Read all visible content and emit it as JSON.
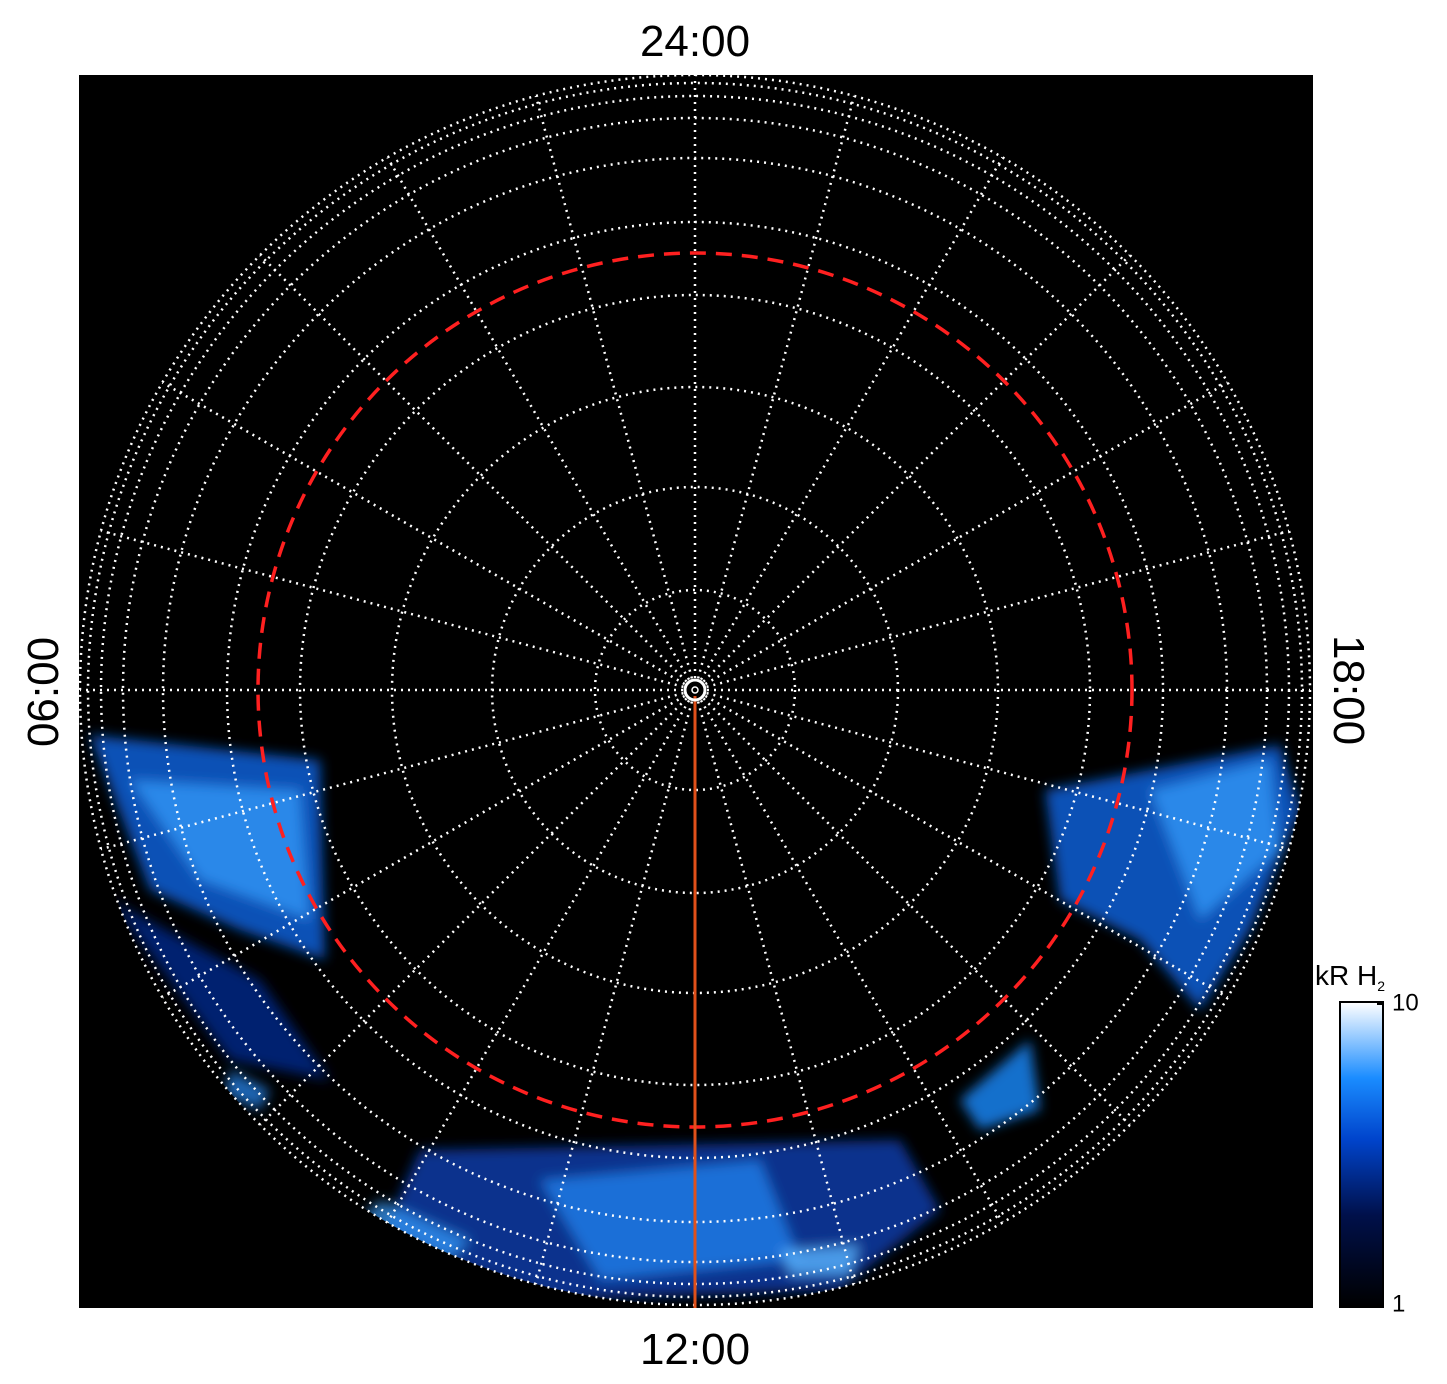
{
  "chart_data": {
    "type": "polar-image",
    "local_time_labels": {
      "top": "24:00",
      "left": "06:00",
      "bottom": "12:00",
      "right": "18:00"
    },
    "colorbar": {
      "label": "kR H",
      "label_subscript": "2",
      "lim": [
        1,
        10
      ],
      "ticks": [
        1,
        10
      ],
      "log": true
    }
  }
}
